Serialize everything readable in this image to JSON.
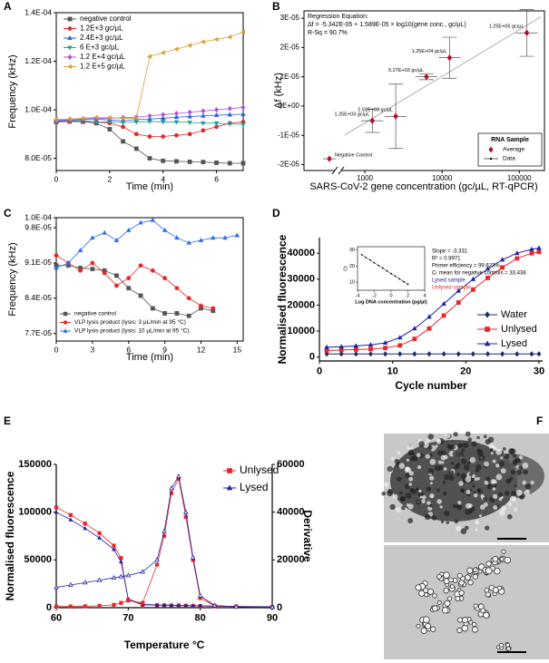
{
  "chart_data": [
    {
      "type": "line",
      "label": "A",
      "xlabel": "Time (min)",
      "ylabel": "Frequency (kHz)",
      "x": [
        0,
        0.5,
        1,
        1.5,
        2,
        2.5,
        3,
        3.5,
        4,
        4.5,
        5,
        5.5,
        6,
        6.5,
        7
      ],
      "xlim": [
        0,
        7
      ],
      "xticks": [
        0,
        2,
        4,
        6
      ],
      "ylim": [
        7.5e-05,
        0.00014
      ],
      "yticks": [
        {
          "value": 8e-05,
          "label": "8.0E-05"
        },
        {
          "value": 0.0001,
          "label": "1.0E-04"
        },
        {
          "value": 0.00012,
          "label": "1.2E-04"
        },
        {
          "value": 0.00014,
          "label": "1.4E-04"
        }
      ],
      "legend": "upper left",
      "series": [
        {
          "name": "negative control",
          "color": "#555555",
          "marker": "square",
          "values": [
            9.5e-05,
            9.52e-05,
            9.51e-05,
            9.45e-05,
            9.2e-05,
            8.7e-05,
            8.4e-05,
            8e-05,
            7.9e-05,
            7.88e-05,
            7.86e-05,
            7.85e-05,
            7.82e-05,
            7.8e-05,
            7.8e-05
          ]
        },
        {
          "name": "1.2E+3 gc/µL",
          "color": "#e8262a",
          "marker": "circle",
          "values": [
            9.5e-05,
            9.52e-05,
            9.55e-05,
            9.5e-05,
            9.45e-05,
            9.3e-05,
            9e-05,
            8.9e-05,
            8.9e-05,
            8.95e-05,
            9e-05,
            9.15e-05,
            9.3e-05,
            9.45e-05,
            9.5e-05
          ]
        },
        {
          "name": "2.4E+3 gc/µL",
          "color": "#2a5ee8",
          "marker": "triangle",
          "values": [
            9.55e-05,
            9.58e-05,
            9.6e-05,
            9.62e-05,
            9.58e-05,
            9.55e-05,
            9.6e-05,
            9.62e-05,
            9.65e-05,
            9.7e-05,
            9.72e-05,
            9.75e-05,
            9.78e-05,
            9.8e-05,
            9.82e-05
          ]
        },
        {
          "name": "6 E+3 gc/µL",
          "color": "#20a090",
          "marker": "triangle-down",
          "values": [
            9.52e-05,
            9.55e-05,
            9.55e-05,
            9.5e-05,
            9.5e-05,
            9.48e-05,
            9.5e-05,
            9.52e-05,
            9.5e-05,
            9.5e-05,
            9.48e-05,
            9.45e-05,
            9.45e-05,
            9.42e-05,
            9.4e-05
          ]
        },
        {
          "name": "1.2 E+4 gc/µL",
          "color": "#b050d8",
          "marker": "diamond",
          "values": [
            9.58e-05,
            9.6e-05,
            9.62e-05,
            9.65e-05,
            9.65e-05,
            9.68e-05,
            9.7e-05,
            9.75e-05,
            9.8e-05,
            9.85e-05,
            9.9e-05,
            9.95e-05,
            0.0001,
            0.0001005,
            0.000101
          ]
        },
        {
          "name": "1.2 E+5 gc/µL",
          "color": "#d8a030",
          "marker": "triangle-left",
          "values": [
            9.6e-05,
            9.62e-05,
            9.65e-05,
            9.7e-05,
            9.68e-05,
            9.65e-05,
            9.65e-05,
            0.000122,
            0.0001235,
            0.000125,
            0.0001265,
            0.000128,
            0.000129,
            0.00013,
            0.000132
          ]
        }
      ]
    },
    {
      "type": "scatter",
      "label": "B",
      "log_x": true,
      "title": "Regression Equation:",
      "equation": "Δf = -5.342E-05 + 1.589E-05 × log10(gene conc., gc/µL)",
      "r_sq": "R-Sq = 90.7%",
      "fit": {
        "intercept": -5.342e-05,
        "slope": 1.589e-05
      },
      "xlabel": "SARS-CoV-2 gene concentration (gc/µL, RT-qPCR)",
      "ylabel": "Δf (kHz)",
      "x": [
        1250,
        2510,
        6270,
        12500,
        125000
      ],
      "values": [
        -5e-06,
        -3.5e-06,
        1e-05,
        1.65e-05,
        2.5e-05
      ],
      "errors": [
        4e-06,
        1.1e-05,
        1e-06,
        7e-06,
        8e-06
      ],
      "point_labels": [
        "1.25E+03 gc/µL",
        "2.51E+03 gc/µL",
        "6.27E+03 gc/µL",
        "1.25E+04 gc/µL",
        "1.25E+05 gc/µL"
      ],
      "negative_control": {
        "label": "Negative Control",
        "value": -1.8e-05
      },
      "color": "#b0102a",
      "xlim": [
        550,
        190000
      ],
      "xticks": [
        1000,
        10000,
        100000
      ],
      "ylim": [
        -2.2e-05,
        3.25e-05
      ],
      "yticks": [
        {
          "value": -2e-05,
          "label": "-2E-05"
        },
        {
          "value": -1e-05,
          "label": "-1E-05"
        },
        {
          "value": 0,
          "label": "0E+00"
        },
        {
          "value": 1e-05,
          "label": "1E-05"
        },
        {
          "value": 2e-05,
          "label": "2E-05"
        },
        {
          "value": 3e-05,
          "label": "3E-05"
        }
      ],
      "legend_title": "RNA Sample",
      "legend_entries": [
        "Average",
        "Data"
      ]
    },
    {
      "type": "line",
      "label": "C",
      "xlabel": "Time (min)",
      "ylabel": "Frequency (kHz)",
      "x": [
        0,
        1,
        2,
        3,
        4,
        5,
        6,
        7,
        8,
        9,
        10,
        11,
        12,
        13,
        14,
        15
      ],
      "xlim": [
        0,
        15.5
      ],
      "xticks": [
        0,
        3,
        6,
        9,
        12,
        15
      ],
      "ylim": [
        7.55e-05,
        0.0001
      ],
      "yticks": [
        {
          "value": 7.7e-05,
          "label": "7.7E-05"
        },
        {
          "value": 8.4e-05,
          "label": "8.4E-05"
        },
        {
          "value": 9.1e-05,
          "label": "9.1E-05"
        },
        {
          "value": 9.8e-05,
          "label": "9.8E-05"
        },
        {
          "value": 0.0001,
          "label": "1.0E-04"
        }
      ],
      "legend": "lower left",
      "series": [
        {
          "name": "negative control",
          "color": "#555555",
          "marker": "square",
          "values": [
            9.05e-05,
            9.05e-05,
            9e-05,
            8.98e-05,
            8.95e-05,
            8.85e-05,
            8.6e-05,
            8.45e-05,
            8.2e-05,
            8.1e-05,
            8.1e-05,
            8.05e-05,
            8.2e-05,
            8.15e-05,
            null,
            null
          ]
        },
        {
          "name": "VLP lysis product (lysis: 3 µL/min at 95 °C)",
          "color": "#e8262a",
          "marker": "circle",
          "values": [
            9.25e-05,
            9.1e-05,
            8.95e-05,
            9.1e-05,
            8.9e-05,
            8.65e-05,
            8.8e-05,
            9.05e-05,
            8.95e-05,
            8.8e-05,
            8.6e-05,
            8.4e-05,
            8.25e-05,
            8.2e-05,
            null,
            null
          ]
        },
        {
          "name": "VLP lysis product (lysis: 10 µL/min at 95 °C)",
          "color": "#2a6ee8",
          "marker": "triangle",
          "values": [
            9e-05,
            9.1e-05,
            9.35e-05,
            9.6e-05,
            9.7e-05,
            9.55e-05,
            9.75e-05,
            9.9e-05,
            9.95e-05,
            9.75e-05,
            9.6e-05,
            9.5e-05,
            9.55e-05,
            9.6e-05,
            9.6e-05,
            9.65e-05
          ]
        }
      ]
    },
    {
      "type": "line",
      "label": "D",
      "xlabel": "Cycle number",
      "ylabel": "Normalised fluorescence",
      "x": [
        1,
        3,
        5,
        7,
        9,
        11,
        13,
        15,
        17,
        19,
        21,
        23,
        25,
        27,
        29,
        30
      ],
      "xlim": [
        0,
        30.5
      ],
      "xticks": [
        0,
        10,
        20,
        30
      ],
      "ylim": [
        -1500,
        46000
      ],
      "yticks": [
        0,
        10000,
        20000,
        30000,
        40000
      ],
      "legend": "lower right",
      "series": [
        {
          "name": "Water",
          "color": "#1a2a6a",
          "marker": "diamond",
          "values": [
            1200,
            1200,
            1200,
            1200,
            1200,
            1200,
            1200,
            1200,
            1200,
            1200,
            1200,
            1200,
            1200,
            1200,
            1200,
            1200
          ]
        },
        {
          "name": "Unlysed",
          "color": "#e8262a",
          "marker": "square",
          "values": [
            2500,
            2700,
            2900,
            3100,
            3500,
            4500,
            7000,
            11000,
            16000,
            21000,
            26000,
            30500,
            34500,
            38000,
            40000,
            40500
          ]
        },
        {
          "name": "Lysed",
          "color": "#2020a0",
          "marker": "triangle",
          "values": [
            3800,
            4000,
            4300,
            4700,
            5500,
            7500,
            11000,
            15500,
            20500,
            25500,
            30000,
            34000,
            37500,
            40000,
            41500,
            42000
          ]
        }
      ],
      "inset": {
        "type": "scatter",
        "xlabel": "Log DNA concentration (pg/µl)",
        "ylabel": "Ct",
        "x": [
          -3.5,
          -3,
          -2.5,
          -2,
          -1.5,
          -1,
          -0.5,
          0,
          0.5,
          1,
          1.5,
          2
        ],
        "values": [
          27.0,
          25.3,
          23.7,
          22.0,
          20.3,
          18.7,
          17.0,
          15.3,
          13.7,
          12.0,
          10.3,
          8.7
        ],
        "xlim": [
          -4,
          4
        ],
        "xticks": [
          -4,
          -2,
          0,
          2,
          4
        ],
        "ylim": [
          5,
          32
        ],
        "yticks": [
          10,
          20,
          30
        ],
        "notes": [
          "Slope = -3.331",
          "R² = 0.9971",
          "Primer efficiency = 99.623%",
          "Cₜ mean for negative controls = 33.438"
        ],
        "lysed_label": "Lysed sample",
        "unlysed_label": "Unlysed sample"
      }
    },
    {
      "type": "line",
      "label": "E",
      "xlabel": "Temperature °C",
      "ylabel": "Normalised fluorescence",
      "y2label": "Derivative",
      "x": [
        60,
        62,
        64,
        66,
        68,
        69,
        70,
        72,
        74,
        75,
        76,
        77,
        78,
        79,
        80,
        82,
        85,
        90
      ],
      "xlim": [
        60,
        90
      ],
      "xticks": [
        60,
        70,
        80,
        90
      ],
      "ylim": [
        0,
        150000
      ],
      "yticks": [
        0,
        50000,
        100000,
        150000
      ],
      "y2lim": [
        0,
        60000
      ],
      "y2ticks": [
        0,
        20000,
        40000,
        60000
      ],
      "legend": "upper right",
      "series": [
        {
          "name": "Unlysed",
          "color": "#e8262a",
          "marker": "square",
          "values": [
            105000,
            97000,
            88000,
            78000,
            65000,
            52000,
            8000,
            3000,
            2500,
            2400,
            2300,
            2200,
            2000,
            1900,
            1800,
            1500,
            1200,
            900
          ]
        },
        {
          "name": "Lysed",
          "color": "#2020a0",
          "marker": "triangle",
          "values": [
            100000,
            92000,
            83000,
            73000,
            61000,
            48000,
            9000,
            3500,
            3000,
            2800,
            2600,
            2400,
            2200,
            2100,
            2000,
            1700,
            1300,
            1000
          ]
        },
        {
          "color": "#e8262a",
          "marker": "square",
          "axis": "y2",
          "values": [
            500,
            500,
            600,
            800,
            1200,
            2000,
            3000,
            2000,
            18000,
            30000,
            48000,
            54000,
            38000,
            20000,
            4000,
            800,
            400,
            200
          ]
        },
        {
          "color": "#2020a0",
          "marker": "triangle",
          "axis": "y2",
          "hollow": true,
          "values": [
            8500,
            9500,
            10500,
            11500,
            12500,
            13000,
            13500,
            15000,
            20000,
            32000,
            50000,
            55000,
            40000,
            21000,
            5000,
            900,
            400,
            200
          ]
        }
      ]
    },
    {
      "type": "image",
      "label": "F"
    }
  ]
}
